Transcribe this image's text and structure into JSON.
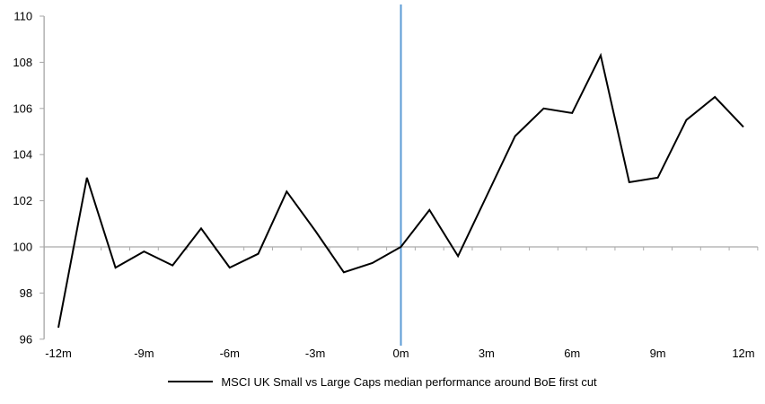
{
  "chart_data": {
    "type": "line",
    "title": "",
    "xlabel": "",
    "ylabel": "",
    "x": [
      -12,
      -11,
      -10,
      -9,
      -8,
      -7,
      -6,
      -5,
      -4,
      -3,
      -2,
      -1,
      0,
      1,
      2,
      3,
      4,
      5,
      6,
      7,
      8,
      9,
      10,
      11,
      12
    ],
    "series": [
      {
        "name": "MSCI UK Small vs Large Caps median performance around BoE first cut",
        "color": "#000000",
        "values": [
          96.5,
          103.0,
          99.1,
          99.8,
          99.2,
          100.8,
          99.1,
          99.7,
          102.4,
          100.7,
          98.9,
          99.3,
          100.0,
          101.6,
          99.6,
          102.2,
          104.8,
          106.0,
          105.8,
          108.3,
          102.8,
          103.0,
          105.5,
          106.5,
          105.2
        ]
      }
    ],
    "ylim": [
      96,
      110
    ],
    "y_ticks": [
      96,
      98,
      100,
      102,
      104,
      106,
      108,
      110
    ],
    "x_tick_values": [
      -12,
      -9,
      -6,
      -3,
      0,
      3,
      6,
      9,
      12
    ],
    "x_tick_labels": [
      "-12m",
      "-9m",
      "-6m",
      "-3m",
      "0m",
      "3m",
      "6m",
      "9m",
      "12m"
    ],
    "baseline_value": 100,
    "event_line_x": 0,
    "legend_position": "bottom",
    "grid": "off",
    "colors": {
      "line": "#000000",
      "event_line": "#5B9BD5",
      "axis": "#A6A6A6",
      "baseline": "#ABABAB",
      "tick_label": "#000000"
    }
  }
}
